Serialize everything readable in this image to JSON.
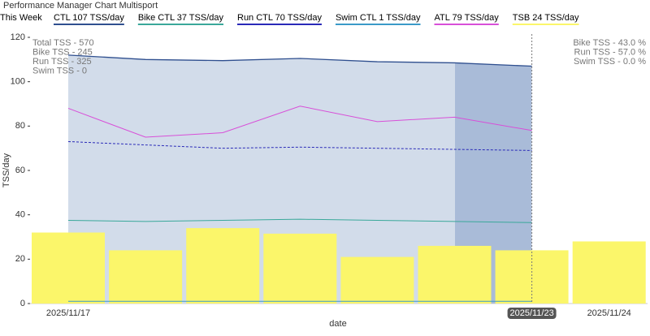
{
  "chart_data": {
    "type": "combo",
    "title": "Performance Manager Chart Multisport",
    "highlight_label": "This Week",
    "x_label": "date",
    "y_label": "TSS/day",
    "categories": [
      "2025/11/17",
      null,
      null,
      null,
      null,
      null,
      "2025/11/23",
      "2025/11/24"
    ],
    "highlight_category": "2025/11/23",
    "ylim": [
      0,
      120
    ],
    "yticks": [
      0,
      20,
      40,
      60,
      80,
      100,
      120
    ],
    "series": [
      {
        "name": "CTL  107 TSS/day",
        "type": "area",
        "color": "#2f4f8f",
        "values": [
          112,
          110,
          109.5,
          110.5,
          109,
          108.5,
          107,
          null
        ]
      },
      {
        "name": "Bike CTL  37 TSS/day",
        "type": "line",
        "color": "#3aa89a",
        "values": [
          37.5,
          37,
          37.5,
          38,
          37.5,
          37,
          36.5,
          null
        ]
      },
      {
        "name": "Run CTL  70 TSS/day",
        "type": "line",
        "color": "#2a2ab8",
        "values": [
          73,
          71.5,
          70,
          70.5,
          70,
          69.5,
          69,
          null
        ]
      },
      {
        "name": "Swim CTL  1 TSS/day",
        "type": "line",
        "color": "#3a9ac8",
        "values": [
          1,
          1,
          1,
          1,
          1,
          1,
          1,
          null
        ]
      },
      {
        "name": "ATL  79 TSS/day",
        "type": "line",
        "color": "#d84fd8",
        "values": [
          88,
          75,
          77,
          89,
          82,
          84,
          78,
          null
        ]
      },
      {
        "name": "TSB  24 TSS/day",
        "type": "bar",
        "color": "#fbf66a",
        "values": [
          32,
          24,
          34,
          31.5,
          21,
          26,
          24,
          28
        ]
      }
    ],
    "annotations_left": [
      "Total TSS - 570",
      "Bike TSS - 245",
      "Run TSS - 325",
      "Swim TSS - 0"
    ],
    "annotations_right": [
      "Bike TSS - 43.0 %",
      "Run TSS - 57.0 %",
      "Swim TSS - 0.0 %"
    ]
  }
}
